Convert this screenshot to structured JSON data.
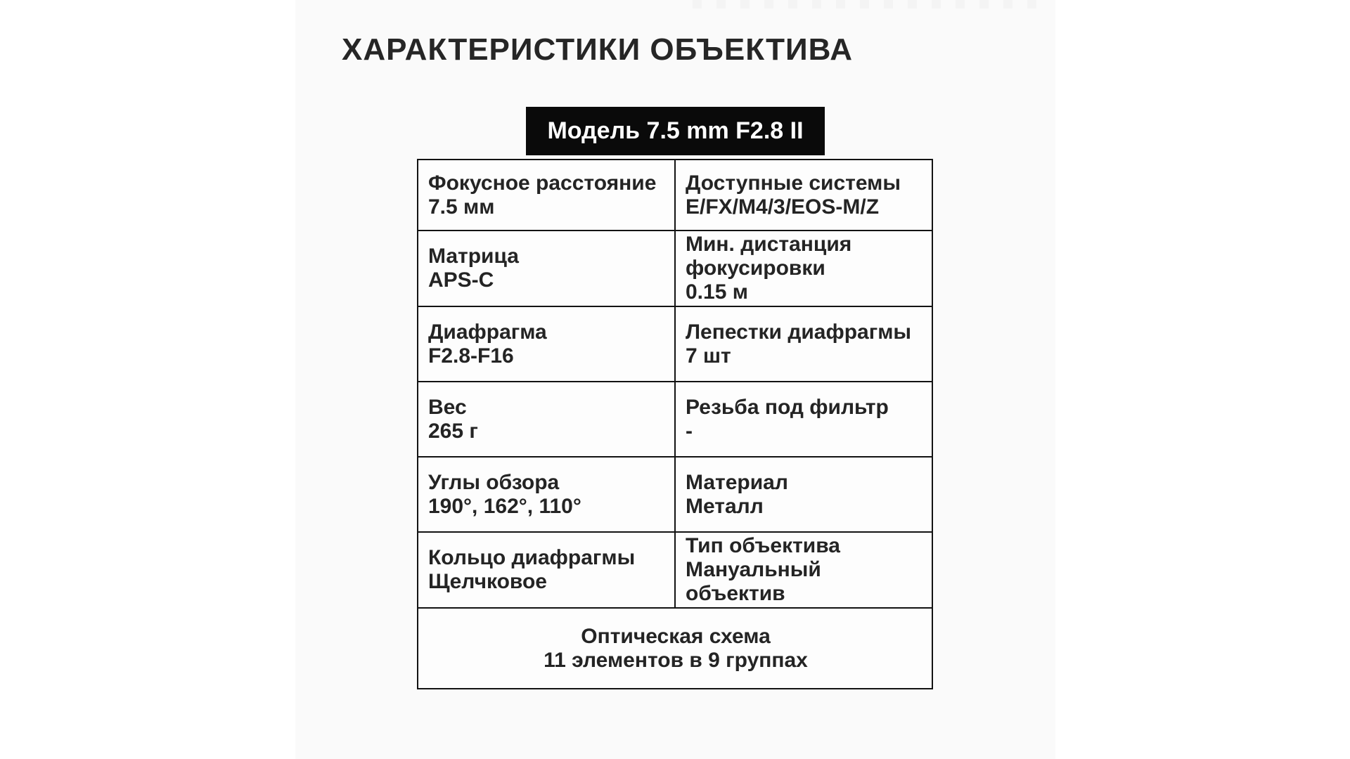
{
  "page": {
    "title": "ХАРАКТЕРИСТИКИ ОБЪЕКТИВА",
    "model_badge": "Модель 7.5 mm F2.8 II"
  },
  "table": {
    "rows": [
      {
        "left": {
          "label": "Фокусное расстояние",
          "value": "7.5 мм"
        },
        "right": {
          "label": "Доступные системы",
          "value": "E/FX/M4/3/EOS-M/Z"
        }
      },
      {
        "left": {
          "label": "Матрица",
          "value": "APS-C"
        },
        "right": {
          "label": "Мин. дистанция фокусировки",
          "value": "0.15 м"
        }
      },
      {
        "left": {
          "label": "Диафрагма",
          "value": "F2.8-F16"
        },
        "right": {
          "label": "Лепестки диафрагмы",
          "value": "7 шт"
        }
      },
      {
        "left": {
          "label": "Вес",
          "value": "265 г"
        },
        "right": {
          "label": "Резьба под фильтр",
          "value": "-"
        }
      },
      {
        "left": {
          "label": "Углы обзора",
          "value": "190°, 162°, 110°"
        },
        "right": {
          "label": "Материал",
          "value": "Металл"
        }
      },
      {
        "left": {
          "label": "Кольцо диафрагмы",
          "value": "Щелчковое"
        },
        "right": {
          "label": "Тип объектива",
          "value": "Мануальный объектив"
        }
      }
    ],
    "footer": {
      "label": "Оптическая схема",
      "value": "11 элементов в 9 группах"
    }
  },
  "colors": {
    "badge_bg": "#0a0a0a",
    "badge_text": "#ffffff",
    "border": "#121212",
    "text": "#242424",
    "panel_bg": "#fafafa",
    "page_bg": "#ffffff"
  }
}
